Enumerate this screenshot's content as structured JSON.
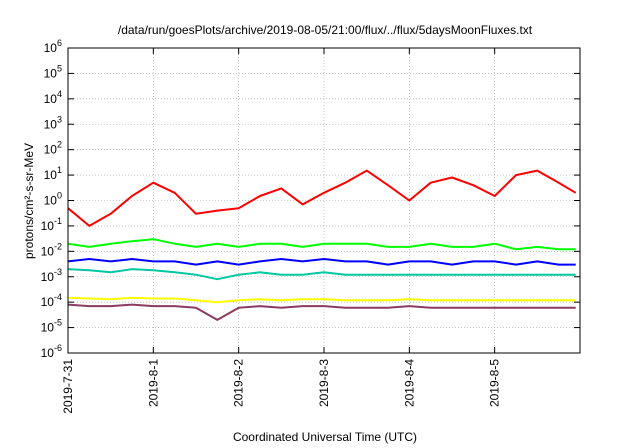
{
  "chart_data": {
    "type": "line",
    "title": "/data/run/goesPlots/archive/2019-08-05/21:00/flux/../flux/5daysMoonFluxes.txt",
    "xlabel": "Coordinated Universal Time (UTC)",
    "ylabel": "protons/cm²-s-sr-MeV",
    "yscale": "log",
    "ylim": [
      1e-06,
      1000000.0
    ],
    "xlim": [
      "2019-07-31",
      "2019-08-06"
    ],
    "grid": true,
    "legend": "none",
    "x_tick_labels": [
      "2019-7-31",
      "2019-8-1",
      "2019-8-2",
      "2019-8-3",
      "2019-8-4",
      "2019-8-5"
    ],
    "y_tick_exponents": [
      "-6",
      "-5",
      "-4",
      "-3",
      "-2",
      "-1",
      "0",
      "1",
      "2",
      "3",
      "4",
      "5",
      "6"
    ],
    "x_day_offsets": [
      0,
      0.25,
      0.5,
      0.75,
      1.0,
      1.25,
      1.5,
      1.75,
      2.0,
      2.25,
      2.5,
      2.75,
      3.0,
      3.25,
      3.5,
      3.75,
      4.0,
      4.25,
      4.5,
      4.75,
      5.0,
      5.25,
      5.5,
      5.75,
      5.95
    ],
    "series": [
      {
        "color": "#ff0000",
        "values": [
          0.5,
          0.1,
          0.3,
          1.5,
          5,
          2,
          0.3,
          0.4,
          0.5,
          1.5,
          3,
          0.7,
          2,
          5,
          15,
          4,
          1,
          5,
          8,
          4,
          1.5,
          10,
          15,
          5,
          2
        ]
      },
      {
        "color": "#00ff00",
        "values": [
          0.02,
          0.015,
          0.02,
          0.025,
          0.03,
          0.02,
          0.015,
          0.02,
          0.015,
          0.02,
          0.02,
          0.015,
          0.02,
          0.02,
          0.02,
          0.015,
          0.015,
          0.02,
          0.015,
          0.015,
          0.02,
          0.012,
          0.015,
          0.012,
          0.012
        ]
      },
      {
        "color": "#0000ff",
        "values": [
          0.004,
          0.005,
          0.004,
          0.005,
          0.004,
          0.004,
          0.003,
          0.004,
          0.003,
          0.004,
          0.005,
          0.004,
          0.005,
          0.004,
          0.004,
          0.003,
          0.004,
          0.004,
          0.003,
          0.004,
          0.004,
          0.003,
          0.004,
          0.003,
          0.003
        ]
      },
      {
        "color": "#00c8a0",
        "values": [
          0.002,
          0.0018,
          0.0015,
          0.002,
          0.0018,
          0.0015,
          0.0012,
          0.0008,
          0.0012,
          0.0015,
          0.0012,
          0.0012,
          0.0015,
          0.0012,
          0.0012,
          0.0012,
          0.0012,
          0.0012,
          0.0012,
          0.0012,
          0.0012,
          0.0012,
          0.0012,
          0.0012,
          0.0012
        ]
      },
      {
        "color": "#ffff00",
        "values": [
          0.00015,
          0.00014,
          0.00013,
          0.00015,
          0.00014,
          0.00014,
          0.00012,
          0.0001,
          0.00012,
          0.00013,
          0.00012,
          0.00013,
          0.00013,
          0.00012,
          0.00012,
          0.00012,
          0.00013,
          0.00012,
          0.00012,
          0.00012,
          0.00012,
          0.00012,
          0.00012,
          0.00012,
          0.00012
        ]
      },
      {
        "color": "#8b3a62",
        "values": [
          8e-05,
          7e-05,
          7e-05,
          8e-05,
          7e-05,
          7e-05,
          6e-05,
          2e-05,
          6e-05,
          7e-05,
          6e-05,
          7e-05,
          7e-05,
          6e-05,
          6e-05,
          6e-05,
          7e-05,
          6e-05,
          6e-05,
          6e-05,
          6e-05,
          6e-05,
          6e-05,
          6e-05,
          6e-05
        ]
      }
    ]
  }
}
